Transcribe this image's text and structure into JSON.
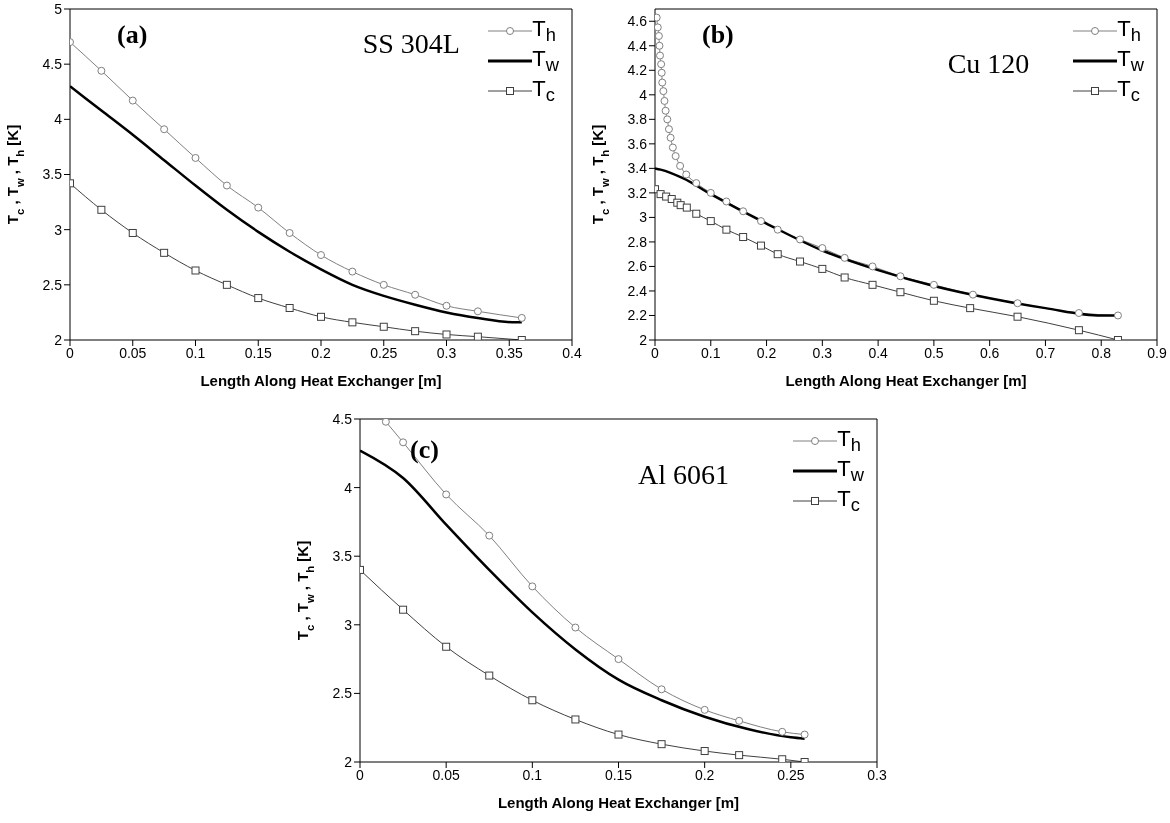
{
  "chart_data": [
    {
      "type": "line",
      "xlabel": "Length Along Heat Exchanger [m]",
      "ylabel": "T$_{c}$ , T$_{w}$ , T$_{h}$ [K]",
      "annotations": [
        "(a)",
        "SS 304L"
      ],
      "xlim": [
        0,
        0.4
      ],
      "xticks": [
        0,
        0.05,
        0.1,
        0.15,
        0.2,
        0.25,
        0.3,
        0.35,
        0.4
      ],
      "ylim": [
        2,
        5
      ],
      "yticks": [
        2,
        2.5,
        3,
        3.5,
        4,
        4.5,
        5
      ],
      "legend": "top right",
      "line_style": "solid",
      "series": [
        {
          "name": "T$_{h}$",
          "color": "#808080",
          "marker": "circle",
          "x": [
            0,
            0.025,
            0.05,
            0.075,
            0.1,
            0.125,
            0.15,
            0.175,
            0.2,
            0.225,
            0.25,
            0.275,
            0.3,
            0.325,
            0.36
          ],
          "values": [
            4.7,
            4.44,
            4.17,
            3.91,
            3.65,
            3.4,
            3.2,
            2.97,
            2.77,
            2.62,
            2.5,
            2.41,
            2.31,
            2.26,
            2.2
          ]
        },
        {
          "name": "T$_{w}$",
          "color": "#000000",
          "marker": "none",
          "x": [
            0,
            0.025,
            0.05,
            0.075,
            0.1,
            0.125,
            0.15,
            0.175,
            0.2,
            0.225,
            0.25,
            0.275,
            0.3,
            0.325,
            0.355,
            0.36
          ],
          "values": [
            4.3,
            4.08,
            3.86,
            3.63,
            3.4,
            3.18,
            2.98,
            2.8,
            2.64,
            2.5,
            2.4,
            2.32,
            2.25,
            2.2,
            2.16,
            2.16
          ]
        },
        {
          "name": "T$_{c}$",
          "color": "#404040",
          "marker": "square",
          "x": [
            0,
            0.025,
            0.05,
            0.075,
            0.1,
            0.125,
            0.15,
            0.175,
            0.2,
            0.225,
            0.25,
            0.275,
            0.3,
            0.325,
            0.36
          ],
          "values": [
            3.42,
            3.18,
            2.97,
            2.79,
            2.63,
            2.5,
            2.38,
            2.29,
            2.21,
            2.16,
            2.12,
            2.08,
            2.05,
            2.03,
            2.0
          ]
        }
      ]
    },
    {
      "type": "line",
      "xlabel": "Length Along Heat Exchanger [m]",
      "ylabel": "T$_{c}$ , T$_{w}$ , T$_{h}$ [K]",
      "annotations": [
        "(b)",
        "Cu 120"
      ],
      "xlim": [
        0,
        0.9
      ],
      "xticks": [
        0,
        0.1,
        0.2,
        0.3,
        0.4,
        0.5,
        0.6,
        0.7,
        0.8,
        0.9
      ],
      "ylim": [
        2,
        4.7
      ],
      "yticks": [
        2,
        2.2,
        2.4,
        2.6,
        2.8,
        3,
        3.2,
        3.4,
        3.6,
        3.8,
        4,
        4.2,
        4.4,
        4.6
      ],
      "legend": "top right",
      "line_style": "solid",
      "series": [
        {
          "name": "T$_{h}$",
          "color": "#808080",
          "marker": "circle",
          "x": [
            0.003,
            0.005,
            0.007,
            0.008,
            0.009,
            0.011,
            0.012,
            0.013,
            0.015,
            0.017,
            0.019,
            0.022,
            0.025,
            0.028,
            0.032,
            0.037,
            0.045,
            0.056,
            0.074,
            0.1,
            0.128,
            0.158,
            0.19,
            0.22,
            0.26,
            0.3,
            0.34,
            0.39,
            0.44,
            0.5,
            0.57,
            0.65,
            0.76,
            0.83
          ],
          "values": [
            4.63,
            4.55,
            4.48,
            4.4,
            4.32,
            4.25,
            4.18,
            4.1,
            4.03,
            3.95,
            3.87,
            3.8,
            3.72,
            3.65,
            3.57,
            3.5,
            3.42,
            3.35,
            3.28,
            3.2,
            3.13,
            3.05,
            2.97,
            2.9,
            2.82,
            2.75,
            2.67,
            2.6,
            2.52,
            2.45,
            2.37,
            2.3,
            2.22,
            2.2
          ]
        },
        {
          "name": "T$_{w}$",
          "color": "#000000",
          "marker": "none",
          "x": [
            0,
            0.01,
            0.05,
            0.1,
            0.2,
            0.3,
            0.4,
            0.5,
            0.6,
            0.7,
            0.8,
            0.83
          ],
          "values": [
            3.4,
            3.39,
            3.32,
            3.19,
            2.95,
            2.73,
            2.57,
            2.44,
            2.34,
            2.26,
            2.2,
            2.2
          ]
        },
        {
          "name": "T$_{c}$",
          "color": "#404040",
          "marker": "square",
          "x": [
            0,
            0.01,
            0.02,
            0.03,
            0.04,
            0.046,
            0.057,
            0.074,
            0.1,
            0.128,
            0.158,
            0.19,
            0.22,
            0.26,
            0.3,
            0.34,
            0.39,
            0.44,
            0.5,
            0.565,
            0.65,
            0.76,
            0.83
          ],
          "values": [
            3.23,
            3.19,
            3.17,
            3.15,
            3.12,
            3.1,
            3.08,
            3.03,
            2.97,
            2.9,
            2.84,
            2.77,
            2.7,
            2.64,
            2.58,
            2.51,
            2.45,
            2.39,
            2.32,
            2.26,
            2.19,
            2.08,
            2.0
          ]
        }
      ]
    },
    {
      "type": "line",
      "xlabel": "Length Along Heat Exchanger [m]",
      "ylabel": "T$_{c}$ , T$_{w}$ , T$_{h}$ [K]",
      "annotations": [
        "(c)",
        "Al 6061"
      ],
      "xlim": [
        0,
        0.3
      ],
      "xticks": [
        0,
        0.05,
        0.1,
        0.15,
        0.2,
        0.25,
        0.3
      ],
      "ylim": [
        2,
        4.5
      ],
      "yticks": [
        2,
        2.5,
        3,
        3.5,
        4,
        4.5
      ],
      "legend": "top right",
      "line_style": "solid",
      "series": [
        {
          "name": "T$_{h}$",
          "color": "#808080",
          "marker": "circle",
          "x": [
            0.015,
            0.025,
            0.05,
            0.075,
            0.1,
            0.125,
            0.15,
            0.175,
            0.2,
            0.22,
            0.245,
            0.258
          ],
          "values": [
            4.48,
            4.33,
            3.95,
            3.65,
            3.28,
            2.98,
            2.75,
            2.53,
            2.38,
            2.3,
            2.22,
            2.2
          ]
        },
        {
          "name": "T$_{w}$",
          "color": "#000000",
          "marker": "none",
          "x": [
            0,
            0.025,
            0.05,
            0.075,
            0.1,
            0.125,
            0.15,
            0.175,
            0.2,
            0.225,
            0.25,
            0.258
          ],
          "values": [
            4.27,
            4.07,
            3.73,
            3.4,
            3.09,
            2.82,
            2.6,
            2.45,
            2.33,
            2.24,
            2.18,
            2.17
          ]
        },
        {
          "name": "T$_{c}$",
          "color": "#404040",
          "marker": "square",
          "x": [
            0,
            0.025,
            0.05,
            0.075,
            0.1,
            0.125,
            0.15,
            0.175,
            0.2,
            0.22,
            0.245,
            0.258
          ],
          "values": [
            3.4,
            3.11,
            2.84,
            2.63,
            2.45,
            2.31,
            2.2,
            2.13,
            2.08,
            2.05,
            2.02,
            2.0
          ]
        }
      ]
    }
  ]
}
